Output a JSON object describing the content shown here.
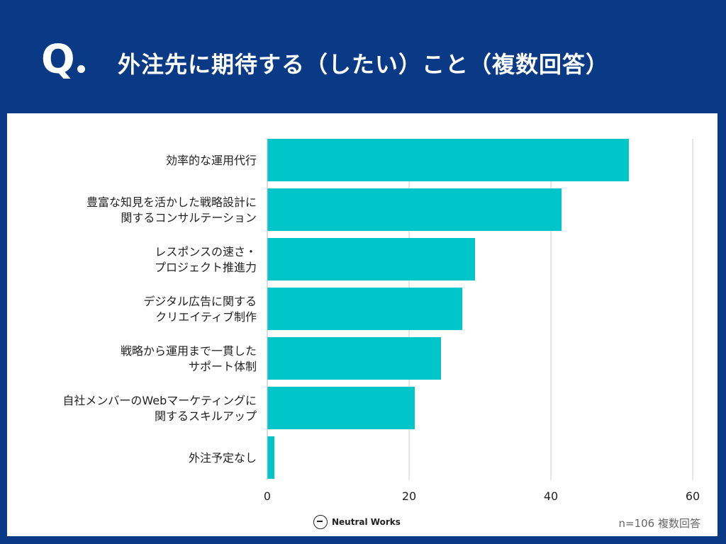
{
  "header": {
    "q_label": "Q",
    "title": "外注先に期待する（したい）こと（複数回答）"
  },
  "footer": {
    "brand": "Neutral Works",
    "note": "n=106 複数回答"
  },
  "colors": {
    "background": "#0a3a86",
    "bar": "#00c5c9",
    "grid": "#cccccc",
    "text": "#222222"
  },
  "chart_data": {
    "type": "bar",
    "orientation": "horizontal",
    "title": "外注先に期待する（したい）こと（複数回答）",
    "xlabel": "",
    "ylabel": "",
    "xlim": [
      0,
      60
    ],
    "xticks": [
      0,
      20,
      40,
      60
    ],
    "grid": true,
    "categories": [
      [
        "効率的な運用代行"
      ],
      [
        "豊富な知見を活かした戦略設計に",
        "関するコンサルテーション"
      ],
      [
        "レスポンスの速さ・",
        "プロジェクト推進力"
      ],
      [
        "デジタル広告に関する",
        "クリエイティブ制作"
      ],
      [
        "戦略から運用まで一貫した",
        "サポート体制"
      ],
      [
        "自社メンバーのWebマーケティングに",
        "関するスキルアップ"
      ],
      [
        "外注予定なし"
      ]
    ],
    "values": [
      51,
      41.5,
      29.3,
      27.5,
      24.5,
      20.8,
      1
    ]
  }
}
